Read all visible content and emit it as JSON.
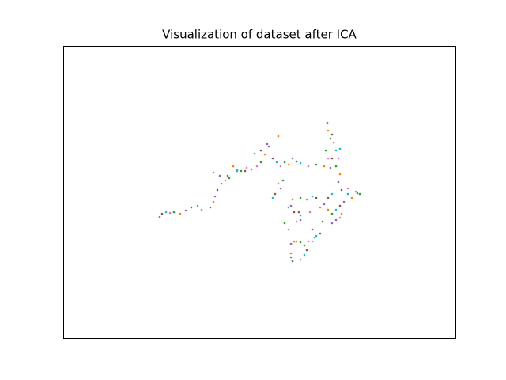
{
  "chart_data": {
    "type": "scatter",
    "title": "Visualization of dataset after ICA",
    "xlim": [
      0,
      496
    ],
    "ylim": [
      0,
      369
    ],
    "series": [
      {
        "color": "#9467bd",
        "x": [
          122,
          155,
          192,
          220,
          260,
          290,
          338,
          334,
          348,
          355,
          330,
          288,
          300,
          288,
          275,
          258,
          198,
          340,
          288,
          345
        ],
        "values": [
          153,
          161,
          179,
          212,
          242,
          227,
          215,
          272,
          197,
          172,
          169,
          167,
          149,
          119,
          189,
          245,
          205,
          145,
          102,
          149
        ]
      },
      {
        "color": "#8c564b",
        "x": [
          125,
          162,
          195,
          230,
          265,
          295,
          340,
          340,
          352,
          350,
          320,
          292,
          315,
          308,
          268,
          250,
          208,
          325,
          298,
          335
        ],
        "values": [
          157,
          165,
          187,
          211,
          227,
          223,
          227,
          257,
          187,
          167,
          177,
          159,
          137,
          111,
          182,
          237,
          205,
          132,
          159,
          177
        ]
      },
      {
        "color": "#17becf",
        "x": [
          130,
          170,
          200,
          238,
          270,
          300,
          345,
          350,
          360,
          345,
          315,
          300,
          320,
          305,
          265,
          242,
          220,
          318,
          285,
          340
        ],
        "values": [
          159,
          167,
          195,
          213,
          222,
          221,
          237,
          239,
          182,
          162,
          179,
          155,
          129,
          105,
          177,
          233,
          211,
          127,
          165,
          182
        ]
      },
      {
        "color": "#e377c2",
        "x": [
          135,
          175,
          205,
          245,
          275,
          310,
          342,
          348,
          370,
          350,
          308,
          295,
          315,
          300,
          272,
          232,
          335,
          310,
          312,
          360
        ],
        "values": [
          158,
          162,
          199,
          217,
          217,
          217,
          247,
          227,
          185,
          152,
          175,
          147,
          122,
          99,
          195,
          215,
          227,
          122,
          159,
          189
        ]
      },
      {
        "color": "#2ca02c",
        "x": [
          140,
          186,
          210,
          250,
          280,
          320,
          338,
          345,
          375,
          340,
          300,
          280,
          305,
          290,
          278,
          225,
          332,
          300,
          328,
          372
        ],
        "values": [
          159,
          165,
          202,
          222,
          222,
          219,
          252,
          217,
          182,
          157,
          177,
          145,
          117,
          97,
          199,
          211,
          237,
          121,
          147,
          183
        ]
      },
      {
        "color": "#ff7f0e",
        "x": [
          148,
          190,
          215,
          255,
          285,
          330,
          335,
          350,
          365,
          335,
          290,
          285,
          295,
          288,
          272,
          190,
          325,
          292,
          352
        ],
        "values": [
          157,
          172,
          217,
          232,
          219,
          217,
          262,
          207,
          177,
          162,
          175,
          137,
          122,
          107,
          255,
          209,
          165,
          122,
          157
        ]
      }
    ]
  }
}
